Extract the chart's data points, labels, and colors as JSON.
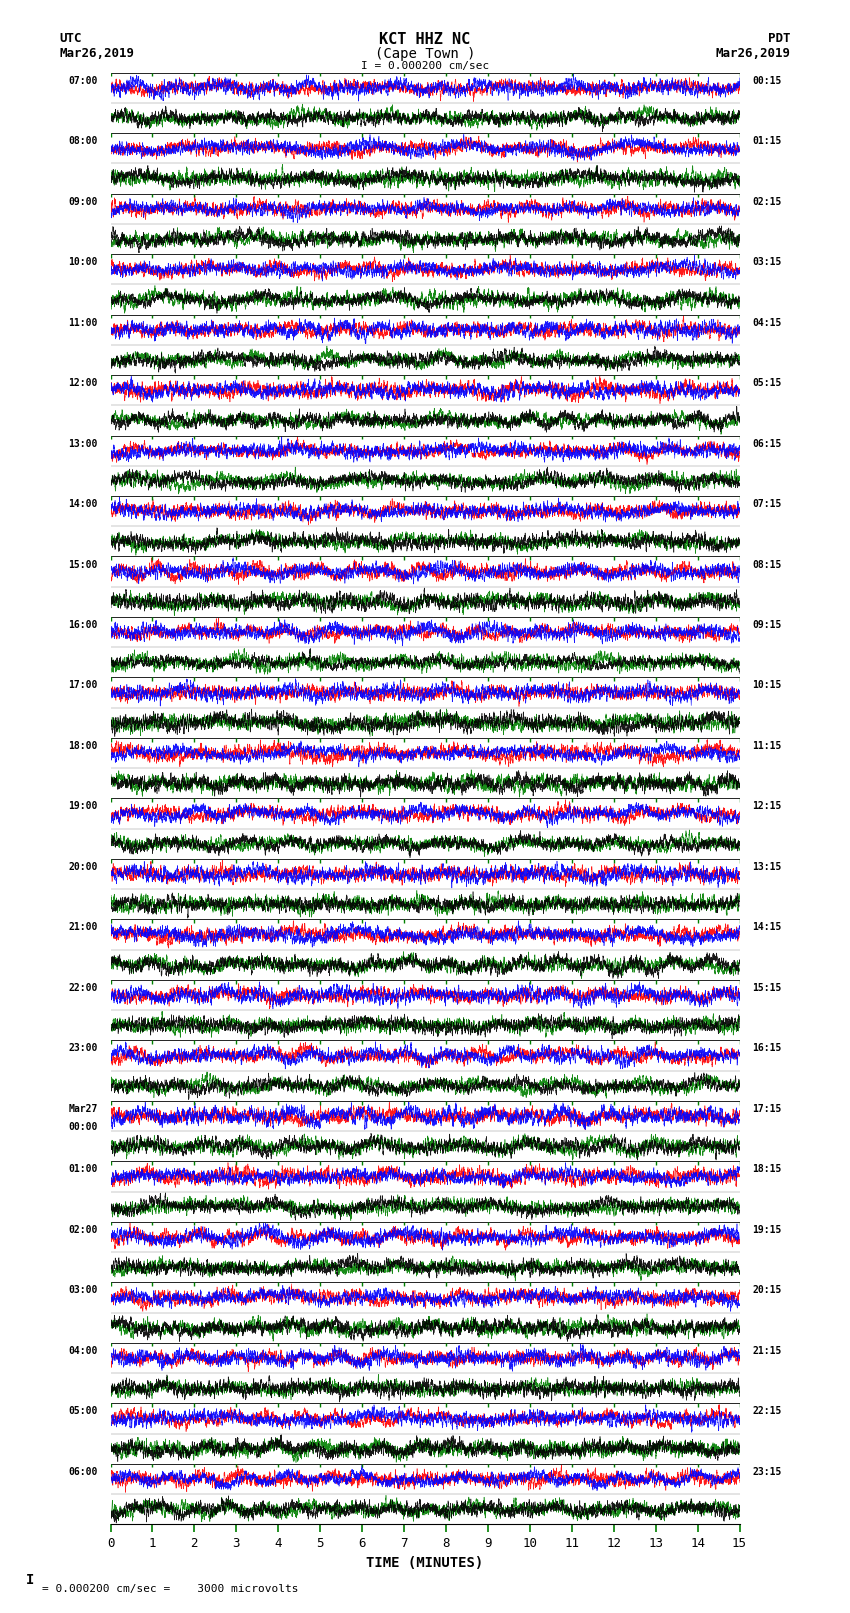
{
  "title_line1": "KCT HHZ NC",
  "title_line2": "(Cape Town )",
  "scale_text": "I = 0.000200 cm/sec",
  "left_label_top": "UTC",
  "left_label_date": "Mar26,2019",
  "right_label_top": "PDT",
  "right_label_date": "Mar26,2019",
  "bottom_label": "TIME (MINUTES)",
  "bottom_note": "= 0.000200 cm/sec =    3000 microvolts",
  "xlabel_ticks": [
    0,
    1,
    2,
    3,
    4,
    5,
    6,
    7,
    8,
    9,
    10,
    11,
    12,
    13,
    14,
    15
  ],
  "left_times_utc": [
    "07:00",
    "08:00",
    "09:00",
    "10:00",
    "11:00",
    "12:00",
    "13:00",
    "14:00",
    "15:00",
    "16:00",
    "17:00",
    "18:00",
    "19:00",
    "20:00",
    "21:00",
    "22:00",
    "23:00",
    "Mar27\n00:00",
    "01:00",
    "02:00",
    "03:00",
    "04:00",
    "05:00",
    "06:00"
  ],
  "right_times_pdt": [
    "00:15",
    "01:15",
    "02:15",
    "03:15",
    "04:15",
    "05:15",
    "06:15",
    "07:15",
    "08:15",
    "09:15",
    "10:15",
    "11:15",
    "12:15",
    "13:15",
    "14:15",
    "15:15",
    "16:15",
    "17:15",
    "18:15",
    "19:15",
    "20:15",
    "21:15",
    "22:15",
    "23:15"
  ],
  "num_rows": 24,
  "minutes_per_row": 15,
  "colors_top": [
    "red",
    "blue"
  ],
  "colors_bottom": [
    "green",
    "black"
  ],
  "bg_color": "white",
  "seed": 42
}
